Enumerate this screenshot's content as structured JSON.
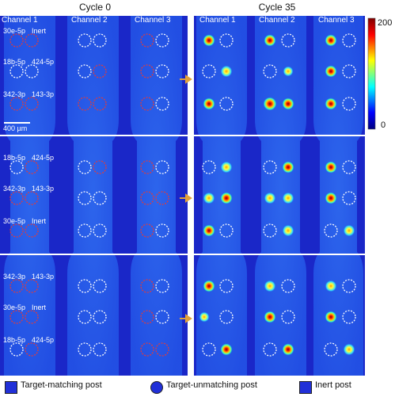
{
  "titles": {
    "cycle0": "Cycle 0",
    "cycle35": "Cycle 35"
  },
  "channels": [
    "Channel 1",
    "Channel 2",
    "Channel 3"
  ],
  "scale_bar": "400 µm",
  "colorbar": {
    "max": "200",
    "min": "0"
  },
  "rows": [
    {
      "labels": [
        "30e-5p",
        "Inert",
        "18b-5p",
        "424-5p",
        "342-3p",
        "143-3p"
      ]
    },
    {
      "labels": [
        "18b-5p",
        "424-5p",
        "342-3p",
        "143-3p",
        "30e-5p",
        "Inert"
      ]
    },
    {
      "labels": [
        "342-3p",
        "143-3p",
        "30e-5p",
        "Inert",
        "18b-5p",
        "424-5p"
      ]
    }
  ],
  "legend": {
    "target_matching": "Target-matching post",
    "target_unmatching": "Target-unmatching post",
    "inert": "Inert post"
  },
  "colors": {
    "target_matching": "#e23b3b",
    "target_unmatching": "#ffffff",
    "background": "#1c2fd2",
    "arrow": "#e2a23a"
  }
}
